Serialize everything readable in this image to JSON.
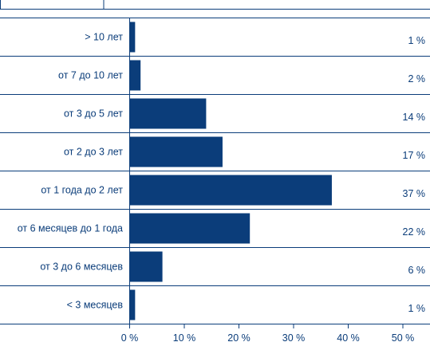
{
  "colors": {
    "accent": "#0b3d7a",
    "bar": "#0b3d7a",
    "text": "#0b3d7a",
    "background": "#ffffff"
  },
  "chart_data": {
    "type": "bar",
    "orientation": "horizontal",
    "categories": [
      "> 10 лет",
      "от 7 до 10 лет",
      "от 3 до 5 лет",
      "от 2 до 3 лет",
      "от 1 года до 2 лет",
      "от 6 месяцев до 1 года",
      "от 3 до 6 месяцев",
      "< 3 месяцев"
    ],
    "values": [
      1,
      2,
      14,
      17,
      37,
      22,
      6,
      1
    ],
    "value_labels": [
      "1 %",
      "2 %",
      "14 %",
      "17 %",
      "37 %",
      "22 %",
      "6 %",
      "1 %"
    ],
    "xticks": [
      0,
      10,
      20,
      30,
      40,
      50
    ],
    "xtick_labels": [
      "0 %",
      "10 %",
      "20 %",
      "30 %",
      "40 %",
      "50 %"
    ],
    "xlim": [
      0,
      50
    ],
    "title": "",
    "xlabel": "",
    "ylabel": "",
    "grid": false,
    "legend": "none"
  }
}
